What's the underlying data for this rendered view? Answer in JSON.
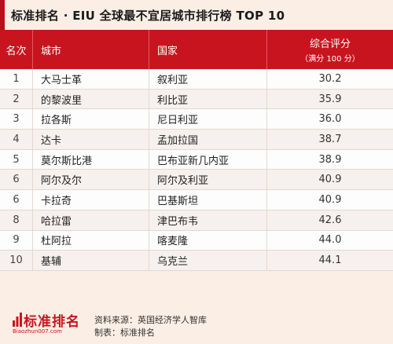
{
  "title": "标准排名 · EIU 全球最不宜居城市排行榜 TOP 10",
  "header": {
    "rank": "名次",
    "city": "城市",
    "country": "国家",
    "score": "综合评分",
    "score_sub": "（满分 100 分）"
  },
  "rows": [
    {
      "rank": "1",
      "city": "大马士革",
      "country": "叙利亚",
      "score": "30.2"
    },
    {
      "rank": "2",
      "city": "的黎波里",
      "country": "利比亚",
      "score": "35.9"
    },
    {
      "rank": "3",
      "city": "拉各斯",
      "country": "尼日利亚",
      "score": "36.0"
    },
    {
      "rank": "4",
      "city": "达卡",
      "country": "孟加拉国",
      "score": "38.7"
    },
    {
      "rank": "5",
      "city": "莫尔斯比港",
      "country": "巴布亚新几内亚",
      "score": "38.9"
    },
    {
      "rank": "6",
      "city": "阿尔及尔",
      "country": "阿尔及利亚",
      "score": "40.9"
    },
    {
      "rank": "6",
      "city": "卡拉奇",
      "country": "巴基斯坦",
      "score": "40.9"
    },
    {
      "rank": "8",
      "city": "哈拉雷",
      "country": "津巴布韦",
      "score": "42.6"
    },
    {
      "rank": "9",
      "city": "杜阿拉",
      "country": "喀麦隆",
      "score": "44.0"
    },
    {
      "rank": "10",
      "city": "基辅",
      "country": "乌克兰",
      "score": "44.1"
    }
  ],
  "footer": {
    "logo_text": "标准排名",
    "logo_url": "Biaozhun007.com",
    "source": "资料来源：英国经济学人智库",
    "maker": "制表：标准排名"
  },
  "colors": {
    "accent": "#c8141e",
    "background": "#fbeee4"
  }
}
